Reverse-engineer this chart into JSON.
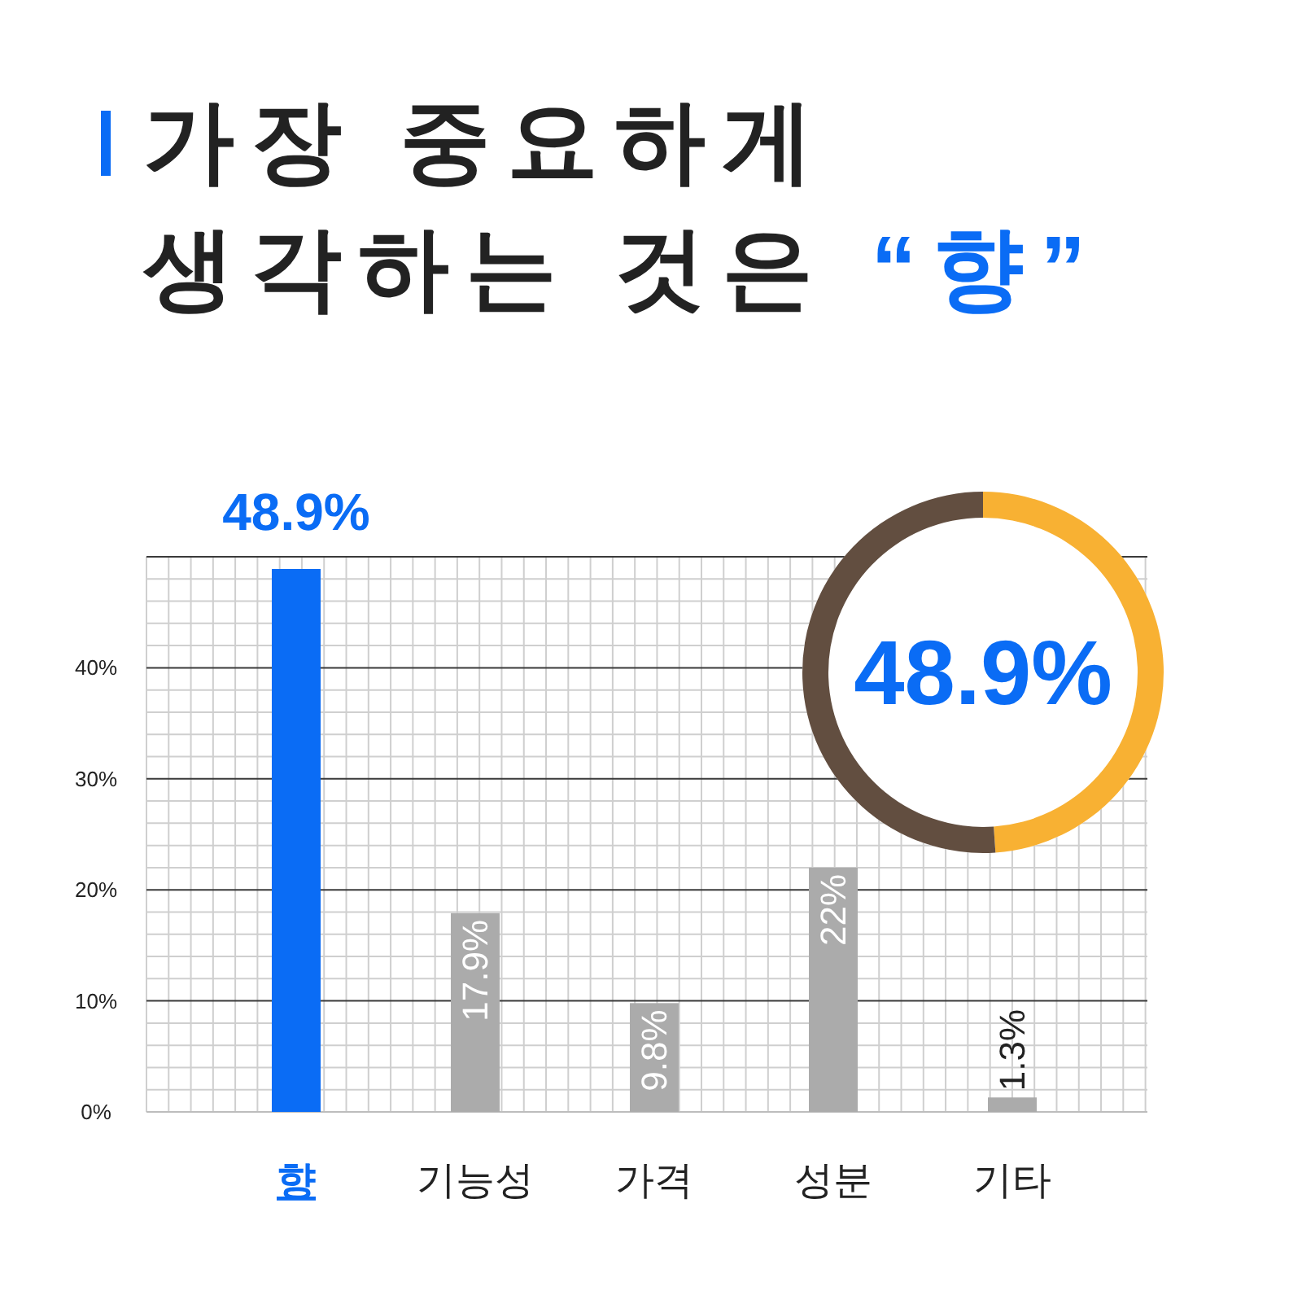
{
  "chart_data": [
    {
      "type": "bar",
      "title": "가장 중요하게 생각하는 것은 “향”",
      "categories": [
        "향",
        "기능성",
        "가격",
        "성분",
        "기타"
      ],
      "values": [
        48.9,
        17.9,
        9.8,
        22,
        1.3
      ],
      "colors": [
        "#0a6cf5",
        "#ababab",
        "#ababab",
        "#ababab",
        "#ababab"
      ],
      "value_labels": [
        "48.9%",
        "17.9%",
        "9.8%",
        "22%",
        "1.3%"
      ],
      "ylim": [
        0,
        50
      ],
      "yticks": [
        {
          "value": 0,
          "label": "0%"
        },
        {
          "value": 10,
          "label": "10%"
        },
        {
          "value": 20,
          "label": "20%"
        },
        {
          "value": 30,
          "label": "30%"
        },
        {
          "value": 40,
          "label": "40%"
        },
        {
          "value": 50,
          "label": null
        }
      ],
      "grid": true
    },
    {
      "type": "donut",
      "categories": [
        null,
        null
      ],
      "values": [
        48.9,
        51.1
      ],
      "colors": [
        "#f8b133",
        "#624e40"
      ],
      "annotations": [
        "48.9%"
      ]
    }
  ]
}
